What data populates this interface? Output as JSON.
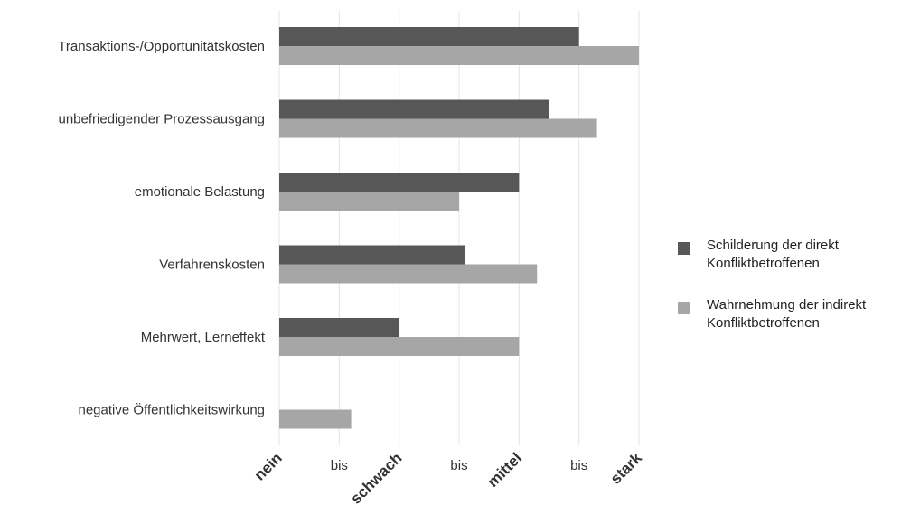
{
  "chart_data": {
    "type": "bar",
    "orientation": "horizontal",
    "categories": [
      "Transaktions-/Opportunitätskosten",
      "unbefriedigender Prozessausgang",
      "emotionale Belastung",
      "Verfahrenskosten",
      "Mehrwert, Lerneffekt",
      "negative Öffentlichkeitswirkung"
    ],
    "x_ticks": [
      "nein",
      "bis",
      "schwach",
      "bis",
      "mittel",
      "bis",
      "stark"
    ],
    "xlim": [
      0,
      6
    ],
    "grid": true,
    "legend_position": "right",
    "series": [
      {
        "name": "Schilderung der direkt\nKonfliktbetroffenen",
        "color": "#575757",
        "values": [
          5.0,
          4.5,
          4.0,
          3.1,
          2.0,
          0
        ]
      },
      {
        "name": "Wahrnehmung der indirekt\nKonfliktbetroffenen",
        "color": "#a6a6a6",
        "values": [
          6.0,
          5.3,
          3.0,
          4.3,
          4.0,
          1.2
        ]
      }
    ]
  }
}
